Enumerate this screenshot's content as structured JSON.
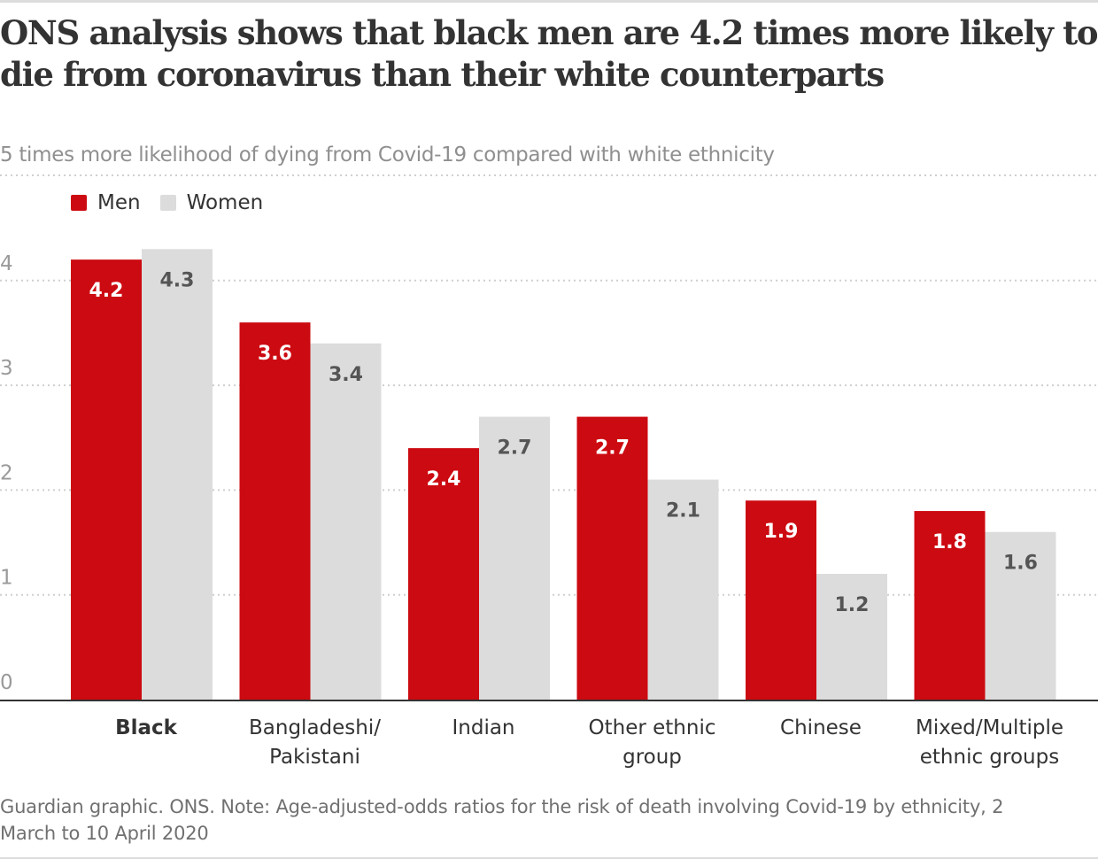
{
  "title": "ONS analysis shows that black men are 4.2 times more likely to die from coronavirus than their white counterparts",
  "subtitle": "5 times more likelihood of dying from Covid-19 compared with white ethnicity",
  "source": "Guardian graphic. ONS. Note: Age-adjusted-odds ratios for the risk of death involving Covid-19 by ethnicity, 2 March to 10 April 2020",
  "colors": {
    "men": "#cc0a11",
    "women": "#dcdcdc",
    "men_label": "#ffffff",
    "women_label": "#555555"
  },
  "chart_data": {
    "type": "bar",
    "title": "ONS analysis shows that black men are 4.2 times more likely to die from coronavirus than their white counterparts",
    "subtitle": "5 times more likelihood of dying from Covid-19 compared with white ethnicity",
    "xlabel": "",
    "ylabel": "",
    "ylim": [
      0,
      5
    ],
    "yticks": [
      0,
      1,
      2,
      3,
      4
    ],
    "grid": true,
    "legend": "top-left",
    "categories": [
      [
        "Black"
      ],
      [
        "Bangladeshi/",
        "Pakistani"
      ],
      [
        "Indian"
      ],
      [
        "Other ethnic",
        "group"
      ],
      [
        "Chinese"
      ],
      [
        "Mixed/Multiple",
        "ethnic groups"
      ]
    ],
    "highlighted_category": "Black",
    "series": [
      {
        "name": "Men",
        "values": [
          4.2,
          3.6,
          2.4,
          2.7,
          1.9,
          1.8
        ]
      },
      {
        "name": "Women",
        "values": [
          4.3,
          3.4,
          2.7,
          2.1,
          1.2,
          1.6
        ]
      }
    ]
  }
}
